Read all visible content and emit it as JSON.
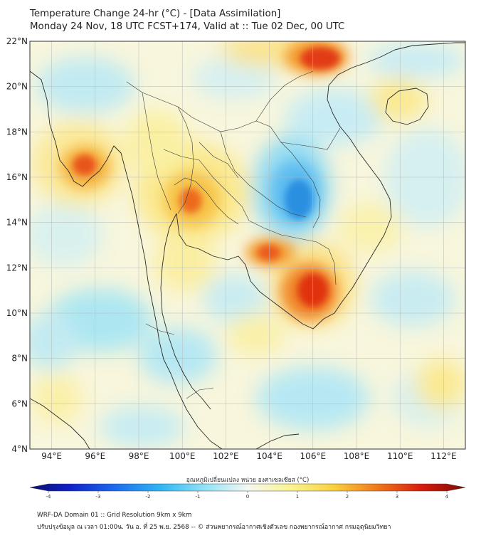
{
  "header": {
    "title_line1": "Temperature Change 24-hr (°C) - [Data Assimilation]",
    "title_line2": "Monday 24 Nov, 18 UTC FCST+174, Valid at :: Tue 02 Dec, 00 UTC"
  },
  "map": {
    "lon_range": [
      93,
      113
    ],
    "lat_range": [
      4,
      22
    ],
    "lon_ticks": [
      94,
      96,
      98,
      100,
      102,
      104,
      106,
      108,
      110,
      112
    ],
    "lat_ticks": [
      4,
      6,
      8,
      10,
      12,
      14,
      16,
      18,
      20,
      22
    ],
    "lon_tick_labels": [
      "94°E",
      "96°E",
      "98°E",
      "100°E",
      "102°E",
      "104°E",
      "106°E",
      "108°E",
      "110°E",
      "112°E"
    ],
    "lat_tick_labels": [
      "4°N",
      "6°N",
      "8°N",
      "10°N",
      "12°N",
      "14°N",
      "16°N",
      "18°N",
      "20°N",
      "22°N"
    ]
  },
  "colorbar": {
    "title": "อุณหภูมิเปลี่ยนแปลง หน่วย องศาเซลเซียส (°C)",
    "range": [
      -4,
      4
    ],
    "tick_values": [
      -4,
      -3,
      -2,
      -1,
      0,
      1,
      2,
      3,
      4
    ],
    "tick_labels": [
      "-4",
      "-3",
      "-2",
      "-1",
      "0",
      "1",
      "2",
      "3",
      "4"
    ]
  },
  "footer": {
    "line1": "WRF-DA Domain 01 :: Grid Resolution 9km x 9km",
    "line2": "ปรับปรุงข้อมูล ณ เวลา 01:00น. วัน อ. ที่ 25 พ.ย. 2568 -- © ส่วนพยากรณ์อากาศเชิงตัวเลข กองพยากรณ์อากาศ กรมอุตุนิยมวิทยา"
  },
  "colors": {
    "warm_peak": "#e0300f",
    "cool_peak": "#2a8fe0",
    "neutral": "#f7f6e4"
  }
}
